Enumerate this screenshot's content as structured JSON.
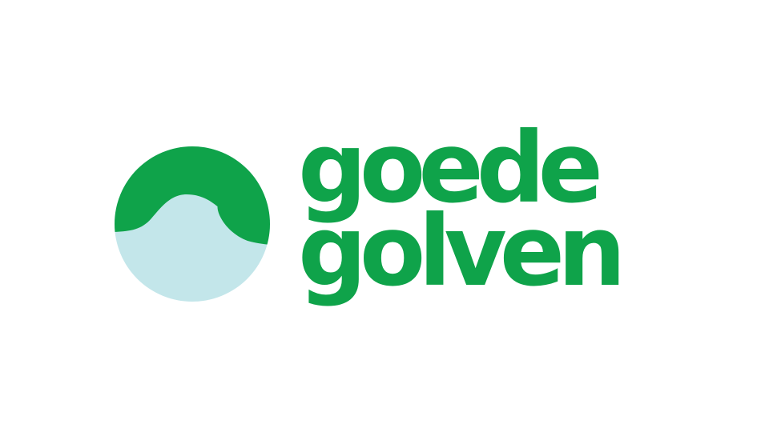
{
  "brand": {
    "wordmark_line_1": "goede",
    "wordmark_line_2": "golven",
    "colors": {
      "primary_green": "#0fa34a",
      "wave_water": "#c3e6ea",
      "background": "#ffffff"
    },
    "emblem_icon": "wave-circle-icon"
  }
}
